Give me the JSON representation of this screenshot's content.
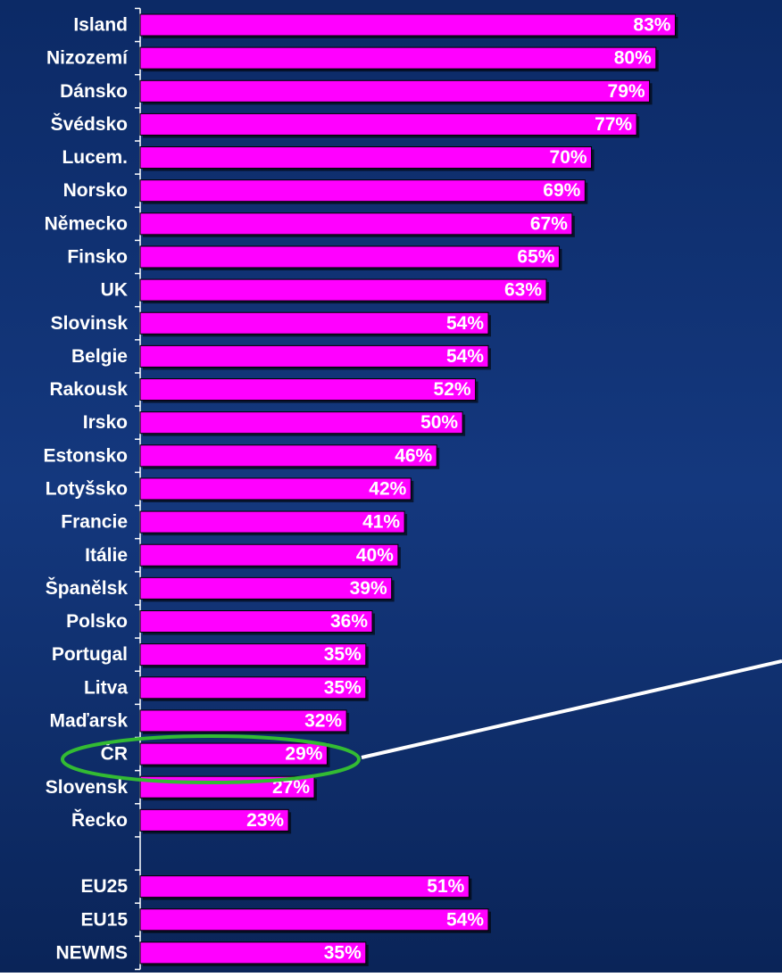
{
  "chart_data": {
    "type": "barh",
    "categories": [
      "Island",
      "Nizozemí",
      "Dánsko",
      "Švédsko",
      "Lucem.",
      "Norsko",
      "Německo",
      "Finsko",
      "UK",
      "Slovinsk",
      "Belgie",
      "Rakousk",
      "Irsko",
      "Estonsko",
      "Lotyšsko",
      "Francie",
      "Itálie",
      "Španělsk",
      "Polsko",
      "Portugal",
      "Litva",
      "Maďarsk",
      "ČR",
      "Slovensk",
      "Řecko",
      null,
      "EU25",
      "EU15",
      "NEWMS"
    ],
    "values": [
      83,
      80,
      79,
      77,
      70,
      69,
      67,
      65,
      63,
      54,
      54,
      52,
      50,
      46,
      42,
      41,
      40,
      39,
      36,
      35,
      35,
      32,
      29,
      27,
      23,
      null,
      51,
      54,
      35
    ],
    "value_labels": [
      "83%",
      "80%",
      "79%",
      "77%",
      "70%",
      "69%",
      "67%",
      "65%",
      "63%",
      "54%",
      "54%",
      "52%",
      "50%",
      "46%",
      "42%",
      "41%",
      "40%",
      "39%",
      "36%",
      "35%",
      "35%",
      "32%",
      "29%",
      "27%",
      "23%",
      null,
      "51%",
      "54%",
      "35%"
    ],
    "color": "#ff00ff",
    "xlim": [
      0,
      90
    ]
  }
}
